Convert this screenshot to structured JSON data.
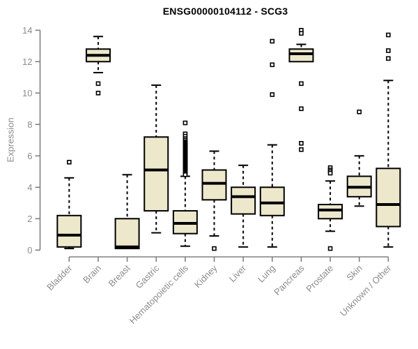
{
  "title": "ENSG00000104112 - SCG3",
  "chart_data": {
    "type": "boxplot",
    "title": "ENSG00000104112 - SCG3",
    "xlabel": "",
    "ylabel": "Expression",
    "ylim": [
      0,
      14
    ],
    "yticks": [
      0,
      2,
      4,
      6,
      8,
      10,
      12,
      14
    ],
    "grid": false,
    "legend": false,
    "colors": {
      "box_fill": "#EDE8CC",
      "box_stroke": "#000000",
      "median": "#000000",
      "whisker": "#000000",
      "outlier_stroke": "#000000",
      "axis_line": "#808080",
      "tick_label": "#8c8c8c",
      "title": "#000000",
      "background": "#ffffff"
    },
    "categories": [
      "Bladder",
      "Brain",
      "Breast",
      "Gastric",
      "Hematopoietic cells",
      "Kidney",
      "Liver",
      "Lung",
      "Pancreas",
      "Prostate",
      "Skin",
      "Unknown / Other"
    ],
    "boxes": [
      {
        "category": "Bladder",
        "whisker_low": 0.1,
        "q1": 0.2,
        "median": 0.95,
        "q3": 2.2,
        "whisker_high": 4.6,
        "outliers": [
          5.6
        ]
      },
      {
        "category": "Brain",
        "whisker_low": 11.3,
        "q1": 12.0,
        "median": 12.4,
        "q3": 12.8,
        "whisker_high": 13.6,
        "outliers": [
          10.6,
          10.0
        ]
      },
      {
        "category": "Breast",
        "whisker_low": 0.1,
        "q1": 0.1,
        "median": 0.2,
        "q3": 2.0,
        "whisker_high": 4.8,
        "outliers": []
      },
      {
        "category": "Gastric",
        "whisker_low": 1.1,
        "q1": 2.5,
        "median": 5.1,
        "q3": 7.2,
        "whisker_high": 10.5,
        "outliers": []
      },
      {
        "category": "Hematopoietic cells",
        "whisker_low": 0.25,
        "q1": 1.05,
        "median": 1.7,
        "q3": 2.5,
        "whisker_high": 4.7,
        "outliers": [
          8.1,
          7.4,
          7.25,
          7.1,
          7.0,
          6.9,
          6.85,
          6.8,
          6.75,
          6.7,
          6.65,
          6.6,
          6.55,
          6.5,
          6.45,
          6.4,
          6.35,
          6.3,
          6.25,
          6.2,
          6.15,
          6.1,
          6.05,
          6.0,
          5.95,
          5.9,
          5.85,
          5.8,
          5.75,
          5.7,
          5.65,
          5.6,
          5.55,
          5.5,
          5.45,
          5.4,
          5.35,
          5.3,
          5.25,
          5.2,
          5.15,
          5.1,
          5.05,
          5.0,
          4.95,
          4.9,
          4.85,
          4.8
        ]
      },
      {
        "category": "Kidney",
        "whisker_low": 0.9,
        "q1": 3.2,
        "median": 4.25,
        "q3": 5.1,
        "whisker_high": 6.3,
        "outliers": [
          0.1
        ]
      },
      {
        "category": "Liver",
        "whisker_low": 0.2,
        "q1": 2.3,
        "median": 3.4,
        "q3": 4.0,
        "whisker_high": 5.4,
        "outliers": []
      },
      {
        "category": "Lung",
        "whisker_low": 0.2,
        "q1": 2.2,
        "median": 3.0,
        "q3": 4.0,
        "whisker_high": 6.7,
        "outliers": [
          13.3,
          11.8,
          9.9
        ]
      },
      {
        "category": "Pancreas",
        "whisker_low": 12.0,
        "q1": 12.0,
        "median": 12.5,
        "q3": 12.8,
        "whisker_high": 13.1,
        "outliers": [
          14.0,
          13.8,
          10.6,
          9.0,
          6.8,
          6.4
        ]
      },
      {
        "category": "Prostate",
        "whisker_low": 1.2,
        "q1": 2.0,
        "median": 2.55,
        "q3": 2.9,
        "whisker_high": 4.4,
        "outliers": [
          5.25,
          5.1,
          5.0,
          4.9,
          0.1
        ]
      },
      {
        "category": "Skin",
        "whisker_low": 2.8,
        "q1": 3.4,
        "median": 4.0,
        "q3": 4.7,
        "whisker_high": 6.0,
        "outliers": [
          8.8
        ]
      },
      {
        "category": "Unknown / Other",
        "whisker_low": 0.2,
        "q1": 1.5,
        "median": 2.9,
        "q3": 5.2,
        "whisker_high": 10.8,
        "outliers": [
          13.7,
          12.7,
          12.2
        ]
      }
    ]
  }
}
